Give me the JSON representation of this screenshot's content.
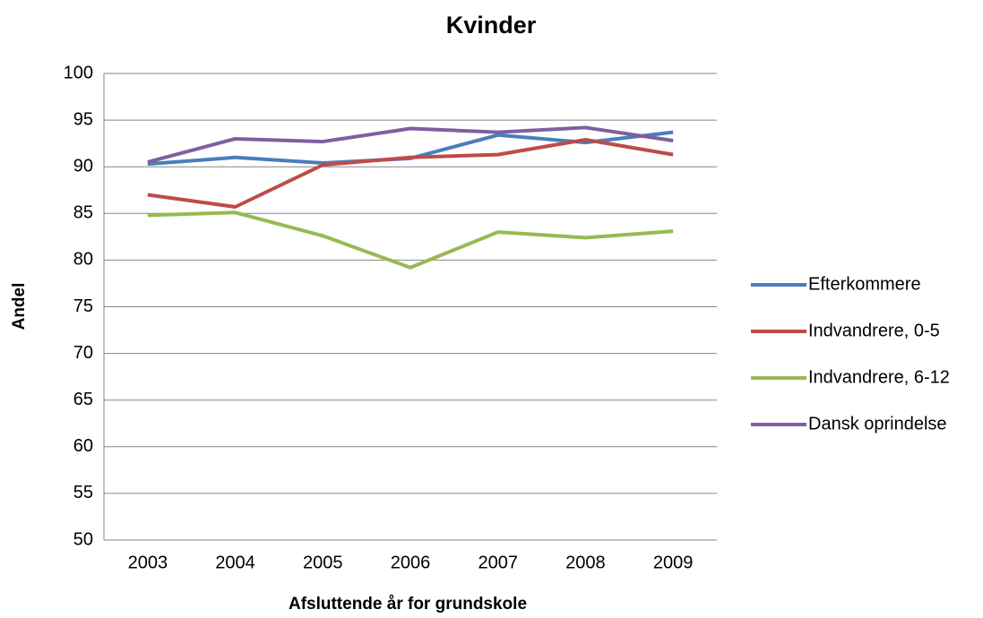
{
  "chart_data": {
    "type": "line",
    "title": "Kvinder",
    "x_label": "Afsluttende år for grundskole",
    "y_label": "Andel",
    "categories": [
      "2003",
      "2004",
      "2005",
      "2006",
      "2007",
      "2008",
      "2009"
    ],
    "series": [
      {
        "name": "Efterkommere",
        "color": "#4a7ebb",
        "values": [
          90.3,
          91.0,
          90.4,
          90.9,
          93.4,
          92.6,
          93.7
        ]
      },
      {
        "name": "Indvandrere, 0-5",
        "color": "#be4b48",
        "values": [
          87.0,
          85.7,
          90.2,
          91.0,
          91.3,
          92.9,
          91.3
        ]
      },
      {
        "name": "Indvandrere, 6-12",
        "color": "#98b954",
        "values": [
          84.8,
          85.1,
          82.6,
          79.2,
          83.0,
          82.4,
          83.1
        ]
      },
      {
        "name": "Dansk oprindelse",
        "color": "#7d60a0",
        "values": [
          90.5,
          93.0,
          92.7,
          94.1,
          93.7,
          94.2,
          92.8
        ]
      }
    ],
    "ylim": [
      50,
      100
    ],
    "yticks": [
      50,
      55,
      60,
      65,
      70,
      75,
      80,
      85,
      90,
      95,
      100
    ],
    "grid": true,
    "legend": "right"
  }
}
